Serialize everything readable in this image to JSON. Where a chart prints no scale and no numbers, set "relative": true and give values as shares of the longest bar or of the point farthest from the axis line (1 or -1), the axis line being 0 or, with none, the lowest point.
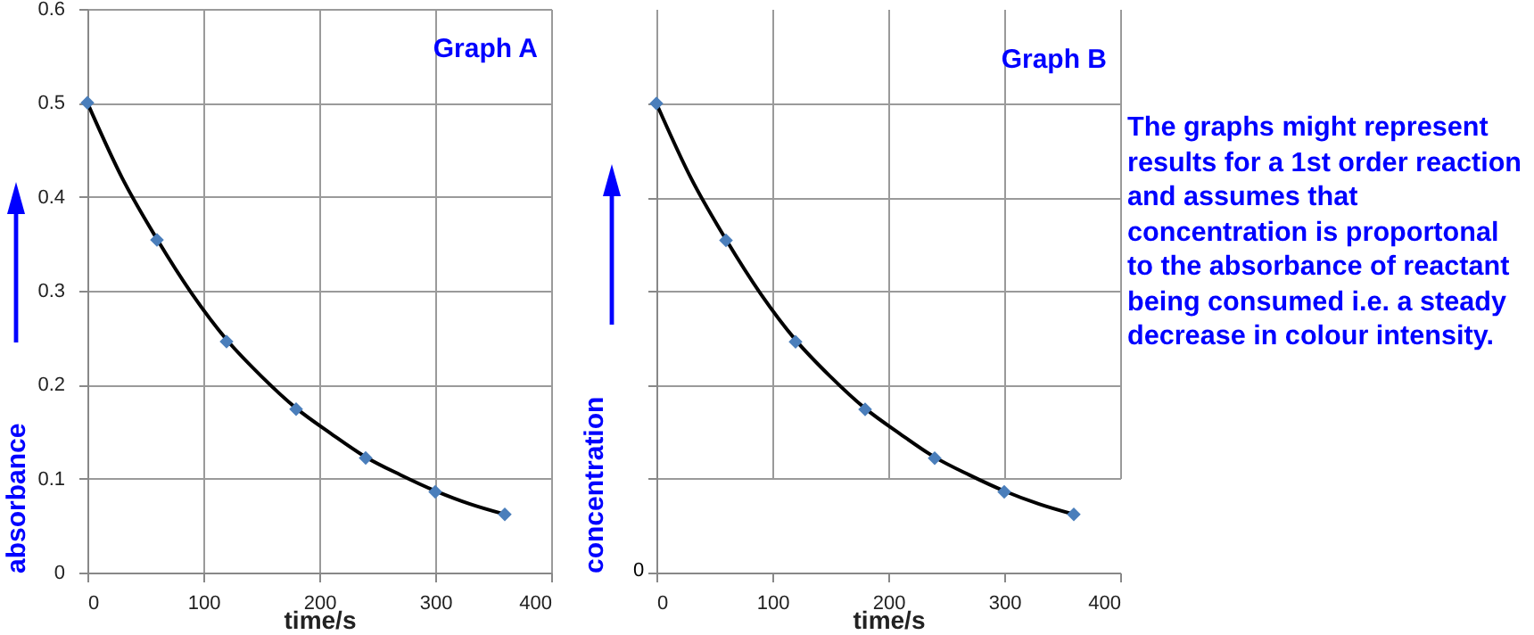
{
  "chart_data": [
    {
      "type": "scatter",
      "title": "Graph A",
      "xlabel": "time/s",
      "ylabel": "absorbance",
      "xlim": [
        0,
        400
      ],
      "xticks": [
        0,
        100,
        200,
        300,
        400
      ],
      "ylim": [
        0,
        0.6
      ],
      "yticks": [
        0,
        0.1,
        0.2,
        0.3,
        0.4,
        0.5,
        0.6
      ],
      "grid": true,
      "series": [
        {
          "type": "line",
          "color": "#000000",
          "x": [
            0,
            30,
            60,
            90,
            120,
            150,
            180,
            210,
            240,
            270,
            300,
            330,
            360
          ],
          "values": [
            0.5,
            0.42,
            0.355,
            0.297,
            0.248,
            0.209,
            0.175,
            0.148,
            0.123,
            0.104,
            0.087,
            0.073,
            0.062
          ]
        },
        {
          "type": "scatter",
          "marker": "diamond",
          "color": "#4a7ebb",
          "x": [
            0,
            60,
            120,
            180,
            240,
            300,
            360
          ],
          "values": [
            0.5,
            0.354,
            0.246,
            0.174,
            0.122,
            0.086,
            0.062
          ]
        }
      ]
    },
    {
      "type": "scatter",
      "title": "Graph B",
      "xlabel": "time/s",
      "ylabel": "concentration",
      "xlim": [
        0,
        400
      ],
      "xticks": [
        0,
        100,
        200,
        300,
        400
      ],
      "relative": true,
      "grid": true,
      "annotations": [
        "0"
      ],
      "series": [
        {
          "type": "line",
          "color": "#000000",
          "x": [
            0,
            30,
            60,
            90,
            120,
            150,
            180,
            210,
            240,
            270,
            300,
            330,
            360
          ],
          "values": [
            1,
            0.84,
            0.71,
            0.594,
            0.496,
            0.418,
            0.35,
            0.296,
            0.246,
            0.208,
            0.174,
            0.146,
            0.124
          ]
        },
        {
          "type": "scatter",
          "marker": "diamond",
          "color": "#4a7ebb",
          "x": [
            0,
            60,
            120,
            180,
            240,
            300,
            360
          ],
          "values": [
            1,
            0.708,
            0.492,
            0.348,
            0.244,
            0.172,
            0.124
          ]
        }
      ]
    },
    {
      "type": "other",
      "annotations": [
        "The graphs might represent results for a 1st order reaction and assumes that concentration is proportonal to the absorbance of reactant being consumed i.e. a steady decrease in colour intensity."
      ]
    }
  ]
}
